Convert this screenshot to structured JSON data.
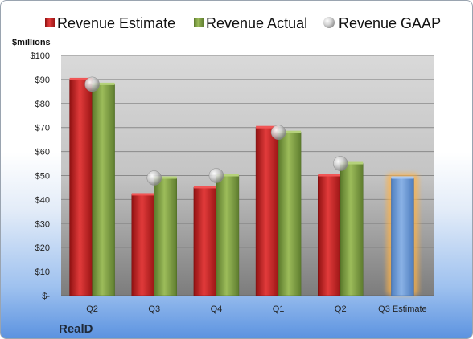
{
  "chart_data": {
    "type": "bar",
    "categories": [
      "Q2",
      "Q3",
      "Q4",
      "Q1",
      "Q2",
      "Q3 Estimate"
    ],
    "series": [
      {
        "name": "Revenue Estimate",
        "values": [
          90,
          42,
          45,
          70,
          50,
          null
        ],
        "color": "#d32a2a"
      },
      {
        "name": "Revenue Actual",
        "values": [
          88,
          49,
          50,
          68,
          55,
          49
        ],
        "color": "#7f9f45",
        "estimate_color": "#6e9bd6"
      },
      {
        "name": "Revenue GAAP",
        "values": [
          88,
          49,
          50,
          68,
          55,
          null
        ],
        "color": "#c9c9c9"
      }
    ],
    "ylabel": "$millions",
    "ylim": [
      0,
      100
    ],
    "yticks": [
      0,
      10,
      20,
      30,
      40,
      50,
      60,
      70,
      80,
      90,
      100
    ],
    "ytick_labels": [
      "$-",
      "$10",
      "$20",
      "$30",
      "$40",
      "$50",
      "$60",
      "$70",
      "$80",
      "$90",
      "$100"
    ],
    "legend_position": "top",
    "grid": true
  },
  "company": "RealD"
}
